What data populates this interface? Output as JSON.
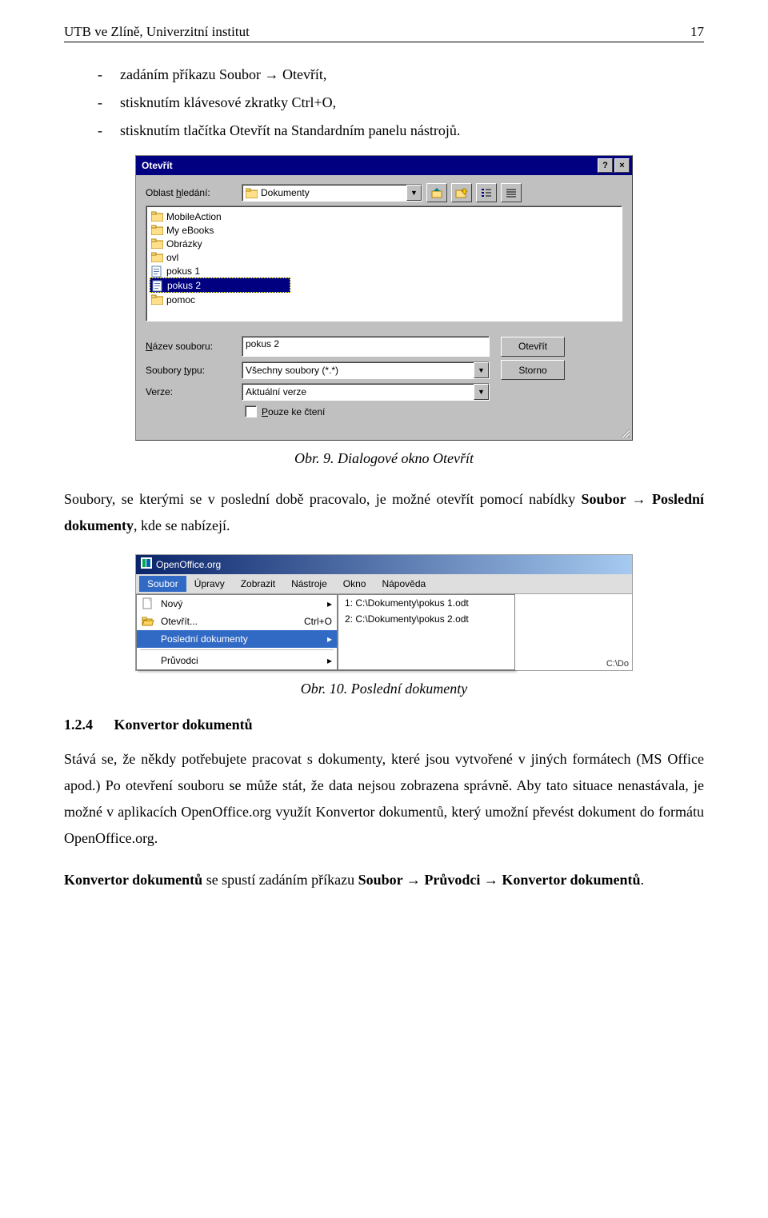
{
  "header": {
    "title": "UTB ve Zlíně, Univerzitní institut",
    "page": "17"
  },
  "bullets": [
    "zadáním příkazu Soubor → Otevřít,",
    "stisknutím klávesové zkratky Ctrl+O,",
    "stisknutím tlačítka Otevřít na Standardním panelu nástrojů."
  ],
  "dlg1": {
    "title": "Otevřít",
    "search_label": "Oblast hledání:",
    "search_dropdown": "Dokumenty",
    "files": [
      {
        "name": "MobileAction",
        "type": "folder"
      },
      {
        "name": "My eBooks",
        "type": "folder"
      },
      {
        "name": "Obrázky",
        "type": "folder"
      },
      {
        "name": "ovl",
        "type": "folder"
      },
      {
        "name": "pokus 1",
        "type": "doc"
      },
      {
        "name": "pokus 2",
        "type": "doc",
        "selected": true
      },
      {
        "name": "pomoc",
        "type": "folder"
      }
    ],
    "filename_label": "Název souboru:",
    "filename_value": "pokus 2",
    "filetype_label": "Soubory typu:",
    "filetype_value": "Všechny soubory (*.*)",
    "version_label": "Verze:",
    "version_value": "Aktuální verze",
    "readonly_label": "Pouze ke čtení",
    "open_btn": "Otevřít",
    "cancel_btn": "Storno"
  },
  "caption1": "Obr. 9. Dialogové okno Otevřít",
  "para1": "Soubory, se kterými se v poslední době pracovalo, je možné otevřít pomocí nabídky Soubor → Poslední dokumenty, kde se nabízejí.",
  "menu2": {
    "app_title": "OpenOffice.org",
    "menubar": [
      "Soubor",
      "Úpravy",
      "Zobrazit",
      "Nástroje",
      "Okno",
      "Nápověda"
    ],
    "items": [
      {
        "label": "Nový",
        "arrow": true,
        "icon": "new"
      },
      {
        "label": "Otevřít...",
        "shortcut": "Ctrl+O",
        "icon": "open"
      },
      {
        "label": "Poslední dokumenty",
        "arrow": true,
        "highlight": true
      },
      {
        "sep": true
      },
      {
        "label": "Průvodci",
        "arrow": true
      }
    ],
    "submenu": [
      "1: C:\\Dokumenty\\pokus 1.odt",
      "2: C:\\Dokumenty\\pokus 2.odt"
    ],
    "right_strip": "C:\\Do"
  },
  "caption2": "Obr. 10. Poslední dokumenty",
  "section": {
    "num": "1.2.4",
    "title": "Konvertor dokumentů"
  },
  "para2": "Stává se, že někdy potřebujete pracovat s dokumenty, které jsou vytvořené v jiných formátech (MS Office apod.) Po otevření souboru se může stát, že data nejsou zobrazena správně. Aby tato situace nenastávala, je možné v aplikacích OpenOffice.org využít Konvertor dokumentů, který umožní převést dokument do formátu OpenOffice.org.",
  "para3": "Konvertor dokumentů se spustí zadáním příkazu Soubor → Průvodci → Konvertor dokumentů."
}
